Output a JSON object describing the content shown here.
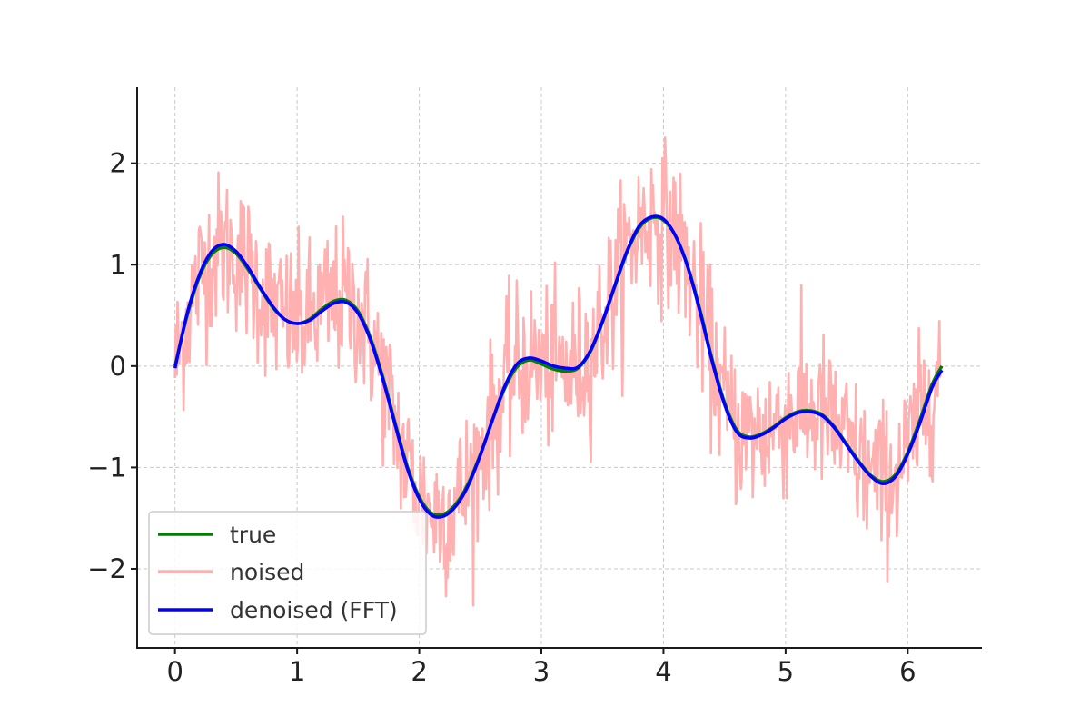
{
  "chart_data": {
    "type": "line",
    "title": "",
    "xlabel": "",
    "ylabel": "",
    "xlim": [
      -0.31,
      6.6
    ],
    "ylim": [
      -2.78,
      2.75
    ],
    "xticks": [
      0,
      1,
      2,
      3,
      4,
      5,
      6
    ],
    "yticks": [
      -2,
      -1,
      0,
      1,
      2
    ],
    "xtick_labels": [
      "0",
      "1",
      "2",
      "3",
      "4",
      "5",
      "6"
    ],
    "ytick_labels": [
      "−2",
      "−1",
      "0",
      "1",
      "2"
    ],
    "grid": true,
    "legend_position": "lower-left",
    "series": [
      {
        "name": "true",
        "color": "#008000",
        "x": [
          0,
          0.1,
          0.2,
          0.3,
          0.4,
          0.5,
          0.6,
          0.7,
          0.8,
          0.9,
          1.0,
          1.1,
          1.2,
          1.3,
          1.4,
          1.5,
          1.6,
          1.7,
          1.8,
          1.9,
          2.0,
          2.1,
          2.2,
          2.3,
          2.4,
          2.5,
          2.6,
          2.7,
          2.8,
          2.9,
          3.0,
          3.1,
          3.2,
          3.3,
          3.4,
          3.5,
          3.6,
          3.7,
          3.8,
          3.9,
          4.0,
          4.1,
          4.2,
          4.3,
          4.4,
          4.5,
          4.6,
          4.7,
          4.8,
          4.9,
          5.0,
          5.1,
          5.2,
          5.3,
          5.4,
          5.5,
          5.6,
          5.7,
          5.8,
          5.9,
          6.0,
          6.1,
          6.2,
          6.28
        ],
        "y": [
          0.0,
          0.5,
          0.88,
          1.1,
          1.17,
          1.11,
          0.95,
          0.76,
          0.58,
          0.46,
          0.42,
          0.46,
          0.56,
          0.64,
          0.65,
          0.54,
          0.28,
          -0.1,
          -0.55,
          -0.98,
          -1.29,
          -1.45,
          -1.46,
          -1.36,
          -1.16,
          -0.87,
          -0.53,
          -0.22,
          -0.01,
          0.06,
          0.02,
          -0.03,
          -0.05,
          -0.02,
          0.14,
          0.43,
          0.78,
          1.12,
          1.36,
          1.46,
          1.44,
          1.28,
          0.98,
          0.55,
          0.06,
          -0.36,
          -0.63,
          -0.7,
          -0.67,
          -0.6,
          -0.51,
          -0.45,
          -0.44,
          -0.48,
          -0.6,
          -0.77,
          -0.94,
          -1.08,
          -1.14,
          -1.07,
          -0.85,
          -0.53,
          -0.18,
          0.0
        ]
      },
      {
        "name": "noised",
        "color": "#ffb0b0"
      },
      {
        "name": "denoised (FFT)",
        "color": "#0000ff",
        "x": [
          0,
          0.1,
          0.2,
          0.3,
          0.4,
          0.5,
          0.6,
          0.7,
          0.8,
          0.9,
          1.0,
          1.1,
          1.2,
          1.3,
          1.4,
          1.5,
          1.6,
          1.7,
          1.8,
          1.9,
          2.0,
          2.1,
          2.2,
          2.3,
          2.4,
          2.5,
          2.6,
          2.7,
          2.8,
          2.9,
          3.0,
          3.1,
          3.2,
          3.3,
          3.4,
          3.5,
          3.6,
          3.7,
          3.8,
          3.9,
          4.0,
          4.1,
          4.2,
          4.3,
          4.4,
          4.5,
          4.6,
          4.7,
          4.8,
          4.9,
          5.0,
          5.1,
          5.2,
          5.3,
          5.4,
          5.5,
          5.6,
          5.7,
          5.8,
          5.9,
          6.0,
          6.1,
          6.2,
          6.28
        ],
        "y": [
          -0.02,
          0.52,
          0.9,
          1.13,
          1.2,
          1.13,
          0.97,
          0.77,
          0.59,
          0.46,
          0.42,
          0.45,
          0.54,
          0.62,
          0.63,
          0.52,
          0.26,
          -0.12,
          -0.57,
          -1.0,
          -1.31,
          -1.47,
          -1.48,
          -1.38,
          -1.18,
          -0.88,
          -0.53,
          -0.2,
          0.02,
          0.08,
          0.05,
          0.0,
          -0.02,
          -0.01,
          0.15,
          0.44,
          0.79,
          1.13,
          1.38,
          1.47,
          1.45,
          1.28,
          0.97,
          0.53,
          0.04,
          -0.38,
          -0.65,
          -0.71,
          -0.68,
          -0.61,
          -0.52,
          -0.46,
          -0.45,
          -0.49,
          -0.61,
          -0.78,
          -0.95,
          -1.09,
          -1.16,
          -1.09,
          -0.87,
          -0.56,
          -0.21,
          -0.04
        ]
      }
    ]
  }
}
